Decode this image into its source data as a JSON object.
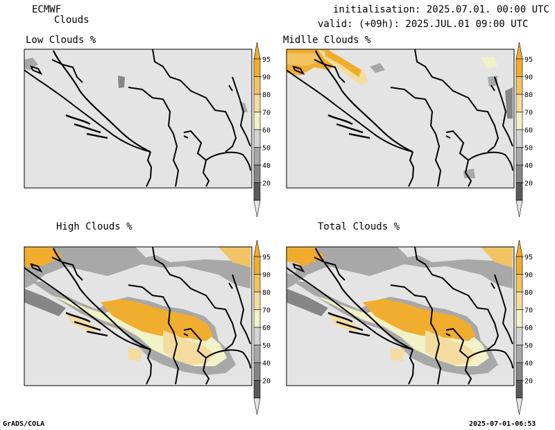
{
  "header": {
    "model": "ECMWF",
    "product": "Clouds",
    "init": "initialisation: 2025.07.01. 00:00 UTC",
    "valid": "valid: (+09h): 2025.JUL.01 09:00 UTC"
  },
  "panels": [
    {
      "title": "Low Clouds %"
    },
    {
      "title": "Midlle Clouds %"
    },
    {
      "title": "High Clouds %"
    },
    {
      "title": "Total Clouds %"
    }
  ],
  "colorbar": {
    "levels": [
      "95",
      "90",
      "80",
      "70",
      "60",
      "50",
      "40",
      "20"
    ],
    "colors": [
      "#f0ad2e",
      "#f2c362",
      "#f4dca0",
      "#f2f2c8",
      "#d4d4d4",
      "#a8a8a8",
      "#868686",
      "#5a5a5a"
    ],
    "top_color": "#f0ad2e",
    "bottom_color": "#e4e4e4"
  },
  "map_colors": {
    "background": "#e4e4e4",
    "border": "#000000"
  },
  "footer": {
    "left": "GrADS/COLA",
    "right": "2025-07-01-06:53"
  }
}
